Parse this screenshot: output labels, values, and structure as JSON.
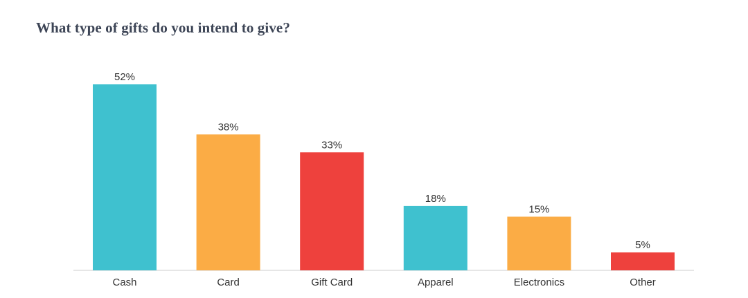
{
  "chart_data": {
    "type": "bar",
    "title": "What type of gifts do you intend to give?",
    "categories": [
      "Cash",
      "Card",
      "Gift Card",
      "Apparel",
      "Electronics",
      "Other"
    ],
    "values": [
      52,
      38,
      33,
      18,
      15,
      5
    ],
    "value_labels": [
      "52%",
      "38%",
      "33%",
      "18%",
      "15%",
      "5%"
    ],
    "colors": [
      "#3fc1cf",
      "#fbac45",
      "#ee413d",
      "#3fc1cf",
      "#fbac45",
      "#ee413d"
    ],
    "xlabel": "",
    "ylabel": "",
    "ylim": [
      0,
      52
    ],
    "grid": false,
    "legend": "none"
  }
}
